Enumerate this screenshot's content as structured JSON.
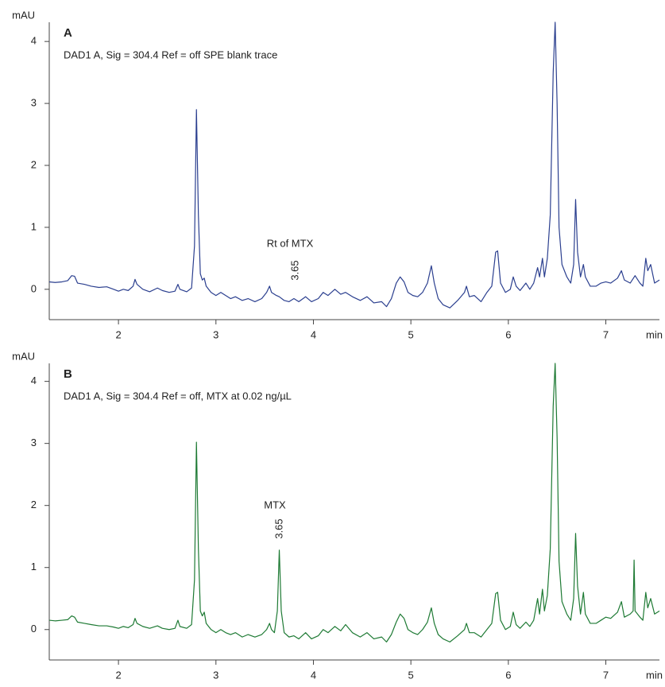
{
  "chart_data": [
    {
      "type": "line",
      "title": "A",
      "subtitle": "DAD1 A, Sig = 304.4 Ref = off  SPE blank trace",
      "ylabel": "mAU",
      "xlabel": "min",
      "annotations": [
        "Rt of MTX",
        "3.65"
      ],
      "color": "#2b3f8f",
      "xlim": [
        1.29,
        7.55
      ],
      "xticks": [
        2,
        3,
        4,
        5,
        6,
        7
      ],
      "ylim": [
        -0.49,
        4.31
      ],
      "yticks": [
        0,
        1,
        2,
        3,
        4
      ],
      "x": [
        1.29,
        1.35,
        1.42,
        1.48,
        1.52,
        1.55,
        1.58,
        1.65,
        1.72,
        1.8,
        1.88,
        1.95,
        2.0,
        2.05,
        2.1,
        2.15,
        2.17,
        2.19,
        2.25,
        2.32,
        2.4,
        2.45,
        2.52,
        2.58,
        2.61,
        2.63,
        2.7,
        2.75,
        2.78,
        2.8,
        2.82,
        2.84,
        2.86,
        2.88,
        2.9,
        2.95,
        3.0,
        3.05,
        3.1,
        3.15,
        3.2,
        3.27,
        3.33,
        3.4,
        3.47,
        3.52,
        3.55,
        3.57,
        3.62,
        3.65,
        3.7,
        3.75,
        3.8,
        3.85,
        3.92,
        3.98,
        4.05,
        4.1,
        4.15,
        4.22,
        4.28,
        4.33,
        4.4,
        4.48,
        4.55,
        4.62,
        4.7,
        4.75,
        4.8,
        4.85,
        4.89,
        4.93,
        4.97,
        5.02,
        5.07,
        5.12,
        5.17,
        5.21,
        5.24,
        5.28,
        5.33,
        5.4,
        5.48,
        5.55,
        5.57,
        5.6,
        5.65,
        5.72,
        5.78,
        5.83,
        5.87,
        5.89,
        5.92,
        5.97,
        6.02,
        6.05,
        6.08,
        6.12,
        6.18,
        6.22,
        6.26,
        6.3,
        6.32,
        6.35,
        6.37,
        6.4,
        6.43,
        6.46,
        6.48,
        6.5,
        6.52,
        6.55,
        6.6,
        6.64,
        6.67,
        6.69,
        6.71,
        6.74,
        6.77,
        6.79,
        6.84,
        6.9,
        6.95,
        7.0,
        7.05,
        7.12,
        7.16,
        7.19,
        7.25,
        7.3,
        7.35,
        7.38,
        7.41,
        7.43,
        7.46,
        7.5,
        7.55
      ],
      "values": [
        0.12,
        0.11,
        0.12,
        0.14,
        0.22,
        0.21,
        0.1,
        0.08,
        0.05,
        0.03,
        0.04,
        0.0,
        -0.03,
        0.0,
        -0.02,
        0.05,
        0.16,
        0.08,
        0.0,
        -0.04,
        0.02,
        -0.02,
        -0.05,
        -0.03,
        0.08,
        0.0,
        -0.04,
        0.02,
        0.7,
        2.9,
        1.2,
        0.25,
        0.15,
        0.18,
        0.05,
        -0.05,
        -0.1,
        -0.05,
        -0.1,
        -0.15,
        -0.12,
        -0.18,
        -0.15,
        -0.2,
        -0.15,
        -0.05,
        0.05,
        -0.05,
        -0.1,
        -0.12,
        -0.18,
        -0.2,
        -0.15,
        -0.2,
        -0.12,
        -0.2,
        -0.15,
        -0.05,
        -0.1,
        0.0,
        -0.08,
        -0.05,
        -0.12,
        -0.18,
        -0.12,
        -0.22,
        -0.2,
        -0.28,
        -0.15,
        0.1,
        0.2,
        0.12,
        -0.05,
        -0.1,
        -0.12,
        -0.05,
        0.1,
        0.38,
        0.1,
        -0.15,
        -0.25,
        -0.3,
        -0.18,
        -0.05,
        0.05,
        -0.12,
        -0.1,
        -0.2,
        -0.05,
        0.05,
        0.6,
        0.62,
        0.1,
        -0.05,
        0.0,
        0.2,
        0.05,
        -0.02,
        0.1,
        0.0,
        0.1,
        0.35,
        0.2,
        0.5,
        0.2,
        0.5,
        1.2,
        3.5,
        4.31,
        3.0,
        1.0,
        0.4,
        0.2,
        0.1,
        0.4,
        1.45,
        0.6,
        0.2,
        0.4,
        0.2,
        0.05,
        0.05,
        0.1,
        0.12,
        0.1,
        0.18,
        0.3,
        0.15,
        0.1,
        0.22,
        0.1,
        0.05,
        0.5,
        0.3,
        0.4,
        0.1,
        0.15
      ]
    },
    {
      "type": "line",
      "title": "B",
      "subtitle": "DAD1 A, Sig = 304.4 Ref = off, MTX at 0.02 ng/µL",
      "ylabel": "mAU",
      "xlabel": "min",
      "annotations": [
        "MTX",
        "3.65"
      ],
      "color": "#1e7a34",
      "xlim": [
        1.29,
        7.55
      ],
      "xticks": [
        2,
        3,
        4,
        5,
        6,
        7
      ],
      "ylim": [
        -0.49,
        4.29
      ],
      "yticks": [
        0,
        1,
        2,
        3,
        4
      ],
      "x": [
        1.29,
        1.35,
        1.42,
        1.48,
        1.52,
        1.55,
        1.58,
        1.65,
        1.72,
        1.8,
        1.88,
        1.95,
        2.0,
        2.05,
        2.1,
        2.15,
        2.17,
        2.19,
        2.25,
        2.32,
        2.4,
        2.45,
        2.52,
        2.58,
        2.61,
        2.63,
        2.7,
        2.75,
        2.78,
        2.8,
        2.82,
        2.84,
        2.86,
        2.88,
        2.9,
        2.95,
        3.0,
        3.05,
        3.1,
        3.15,
        3.2,
        3.27,
        3.33,
        3.4,
        3.47,
        3.52,
        3.55,
        3.57,
        3.6,
        3.63,
        3.65,
        3.67,
        3.7,
        3.75,
        3.8,
        3.85,
        3.92,
        3.98,
        4.05,
        4.1,
        4.15,
        4.22,
        4.28,
        4.33,
        4.4,
        4.48,
        4.55,
        4.62,
        4.7,
        4.75,
        4.8,
        4.85,
        4.89,
        4.93,
        4.97,
        5.02,
        5.07,
        5.12,
        5.17,
        5.21,
        5.24,
        5.28,
        5.33,
        5.4,
        5.48,
        5.55,
        5.57,
        5.6,
        5.65,
        5.72,
        5.78,
        5.83,
        5.87,
        5.89,
        5.92,
        5.97,
        6.02,
        6.05,
        6.08,
        6.12,
        6.18,
        6.22,
        6.26,
        6.3,
        6.32,
        6.35,
        6.37,
        6.4,
        6.43,
        6.46,
        6.48,
        6.5,
        6.52,
        6.55,
        6.6,
        6.64,
        6.67,
        6.69,
        6.71,
        6.74,
        6.77,
        6.79,
        6.84,
        6.9,
        6.95,
        7.0,
        7.05,
        7.12,
        7.16,
        7.19,
        7.25,
        7.28,
        7.29,
        7.3,
        7.35,
        7.38,
        7.41,
        7.43,
        7.46,
        7.5,
        7.55
      ],
      "values": [
        0.15,
        0.14,
        0.15,
        0.16,
        0.22,
        0.2,
        0.12,
        0.1,
        0.08,
        0.06,
        0.06,
        0.04,
        0.02,
        0.05,
        0.03,
        0.08,
        0.18,
        0.1,
        0.05,
        0.02,
        0.06,
        0.02,
        0.0,
        0.02,
        0.15,
        0.05,
        0.02,
        0.08,
        0.8,
        3.02,
        1.3,
        0.3,
        0.22,
        0.28,
        0.1,
        0.0,
        -0.05,
        0.0,
        -0.05,
        -0.08,
        -0.05,
        -0.12,
        -0.08,
        -0.12,
        -0.08,
        0.0,
        0.1,
        0.0,
        -0.05,
        0.3,
        1.28,
        0.3,
        -0.05,
        -0.12,
        -0.1,
        -0.15,
        -0.05,
        -0.15,
        -0.1,
        0.0,
        -0.05,
        0.05,
        -0.02,
        0.08,
        -0.05,
        -0.12,
        -0.05,
        -0.15,
        -0.12,
        -0.2,
        -0.08,
        0.12,
        0.25,
        0.18,
        0.0,
        -0.05,
        -0.08,
        0.0,
        0.12,
        0.35,
        0.1,
        -0.08,
        -0.15,
        -0.2,
        -0.1,
        0.0,
        0.1,
        -0.05,
        -0.05,
        -0.12,
        0.0,
        0.1,
        0.58,
        0.6,
        0.15,
        0.0,
        0.05,
        0.28,
        0.08,
        0.02,
        0.12,
        0.05,
        0.15,
        0.5,
        0.25,
        0.65,
        0.3,
        0.55,
        1.3,
        3.6,
        4.29,
        3.1,
        1.1,
        0.45,
        0.25,
        0.15,
        0.5,
        1.55,
        0.7,
        0.25,
        0.6,
        0.25,
        0.1,
        0.1,
        0.15,
        0.2,
        0.18,
        0.28,
        0.45,
        0.2,
        0.25,
        0.3,
        1.12,
        0.3,
        0.2,
        0.15,
        0.6,
        0.35,
        0.5,
        0.25,
        0.3
      ]
    }
  ]
}
